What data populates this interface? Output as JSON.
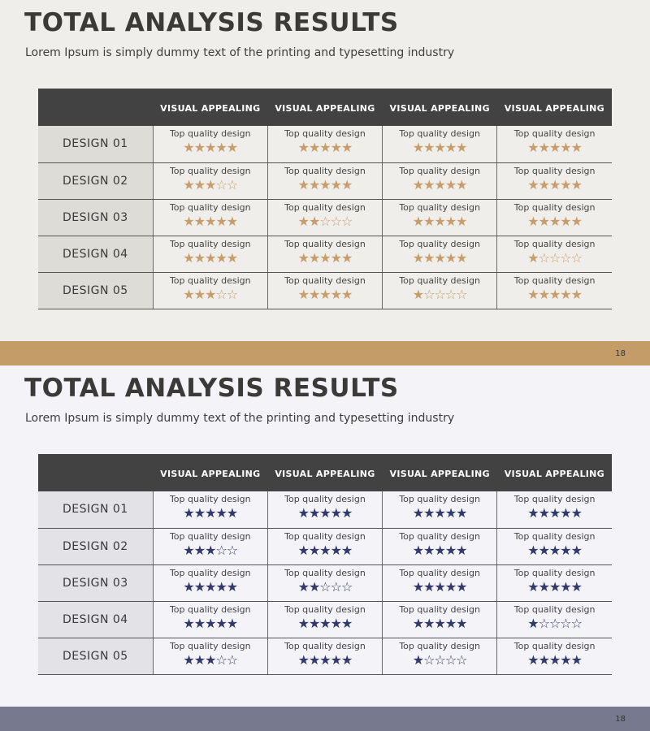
{
  "slides": [
    {
      "title": "TOTAL ANALYSIS RESULTS",
      "subtitle": "Lorem Ipsum is simply dummy text of the printing and typesetting industry",
      "page_number": "18",
      "colors": {
        "background": "#efeeea",
        "accent": "#c39c68",
        "star": "#c79d6b",
        "header": "#424242"
      },
      "columns": [
        "VISUAL APPEALING",
        "VISUAL APPEALING",
        "VISUAL APPEALING",
        "VISUAL APPEALING"
      ],
      "rows": [
        {
          "label": "DESIGN 01",
          "cells": [
            {
              "text": "Top quality design",
              "rating": 5
            },
            {
              "text": "Top quality design",
              "rating": 5
            },
            {
              "text": "Top quality design",
              "rating": 5
            },
            {
              "text": "Top quality design",
              "rating": 5
            }
          ]
        },
        {
          "label": "DESIGN 02",
          "cells": [
            {
              "text": "Top quality design",
              "rating": 3
            },
            {
              "text": "Top quality design",
              "rating": 5
            },
            {
              "text": "Top quality design",
              "rating": 5
            },
            {
              "text": "Top quality design",
              "rating": 5
            }
          ]
        },
        {
          "label": "DESIGN 03",
          "cells": [
            {
              "text": "Top quality design",
              "rating": 5
            },
            {
              "text": "Top quality design",
              "rating": 2
            },
            {
              "text": "Top quality design",
              "rating": 5
            },
            {
              "text": "Top quality design",
              "rating": 5
            }
          ]
        },
        {
          "label": "DESIGN 04",
          "cells": [
            {
              "text": "Top quality design",
              "rating": 5
            },
            {
              "text": "Top quality design",
              "rating": 5
            },
            {
              "text": "Top quality design",
              "rating": 5
            },
            {
              "text": "Top quality design",
              "rating": 1
            }
          ]
        },
        {
          "label": "DESIGN 05",
          "cells": [
            {
              "text": "Top quality design",
              "rating": 3
            },
            {
              "text": "Top quality design",
              "rating": 5
            },
            {
              "text": "Top quality design",
              "rating": 1
            },
            {
              "text": "Top quality design",
              "rating": 5
            }
          ]
        }
      ]
    },
    {
      "title": "TOTAL ANALYSIS RESULTS",
      "subtitle": "Lorem Ipsum is simply dummy text of the printing and typesetting industry",
      "page_number": "18",
      "colors": {
        "background": "#f3f3f8",
        "accent": "#777a8e",
        "star": "#323a6b",
        "header": "#424242"
      },
      "columns": [
        "VISUAL APPEALING",
        "VISUAL APPEALING",
        "VISUAL APPEALING",
        "VISUAL APPEALING"
      ],
      "rows": [
        {
          "label": "DESIGN 01",
          "cells": [
            {
              "text": "Top quality design",
              "rating": 5
            },
            {
              "text": "Top quality design",
              "rating": 5
            },
            {
              "text": "Top quality design",
              "rating": 5
            },
            {
              "text": "Top quality design",
              "rating": 5
            }
          ]
        },
        {
          "label": "DESIGN 02",
          "cells": [
            {
              "text": "Top quality design",
              "rating": 3
            },
            {
              "text": "Top quality design",
              "rating": 5
            },
            {
              "text": "Top quality design",
              "rating": 5
            },
            {
              "text": "Top quality design",
              "rating": 5
            }
          ]
        },
        {
          "label": "DESIGN 03",
          "cells": [
            {
              "text": "Top quality design",
              "rating": 5
            },
            {
              "text": "Top quality design",
              "rating": 2
            },
            {
              "text": "Top quality design",
              "rating": 5
            },
            {
              "text": "Top quality design",
              "rating": 5
            }
          ]
        },
        {
          "label": "DESIGN 04",
          "cells": [
            {
              "text": "Top quality design",
              "rating": 5
            },
            {
              "text": "Top quality design",
              "rating": 5
            },
            {
              "text": "Top quality design",
              "rating": 5
            },
            {
              "text": "Top quality design",
              "rating": 1
            }
          ]
        },
        {
          "label": "DESIGN 05",
          "cells": [
            {
              "text": "Top quality design",
              "rating": 3
            },
            {
              "text": "Top quality design",
              "rating": 5
            },
            {
              "text": "Top quality design",
              "rating": 1
            },
            {
              "text": "Top quality design",
              "rating": 5
            }
          ]
        }
      ]
    }
  ]
}
